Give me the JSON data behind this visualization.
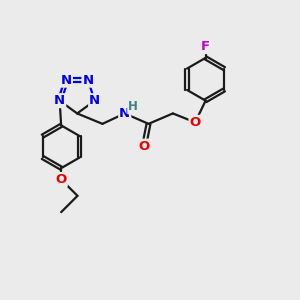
{
  "bg_color": "#ebebeb",
  "bond_color": "#1a1a1a",
  "N_color": "#0000ee",
  "O_color": "#ee0000",
  "F_color": "#cc00cc",
  "H_color": "#408080",
  "line_width": 1.6,
  "font_size_atom": 9.5,
  "fig_width": 3.0,
  "fig_height": 3.0,
  "dpi": 100,
  "xlim": [
    0,
    10
  ],
  "ylim": [
    0,
    10
  ]
}
